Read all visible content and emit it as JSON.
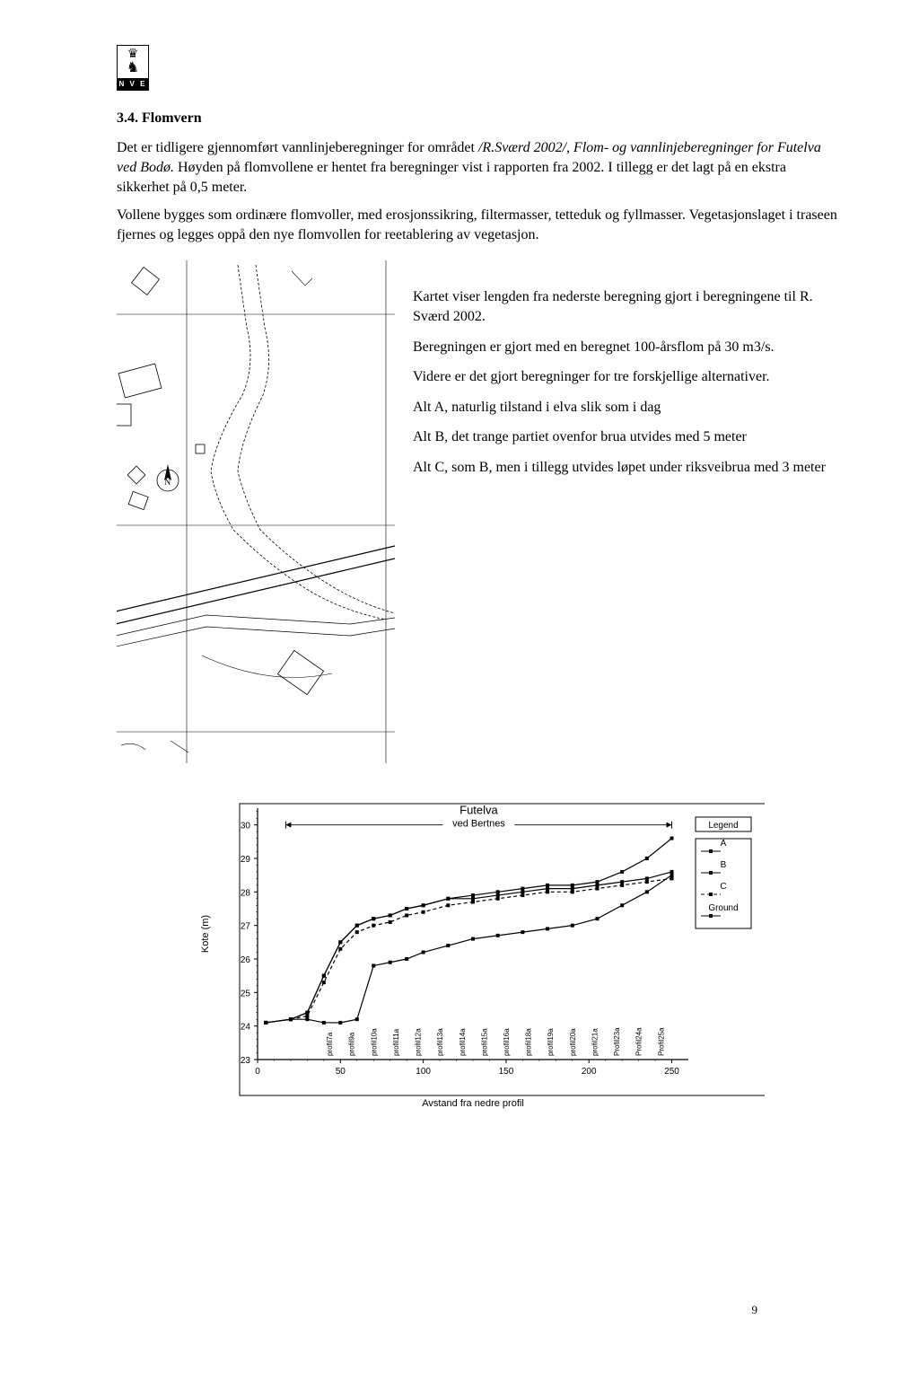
{
  "logo": {
    "label": "N V E",
    "crown_glyph": "♛",
    "lion_glyph": "♘"
  },
  "section": {
    "number": "3.4.",
    "title": "Flomvern"
  },
  "paragraphs": {
    "p1_a": "Det er tidligere gjennomført vannlinjeberegninger for området ",
    "p1_italic": "/R.Sværd 2002/, Flom- og vannlinjeberegninger for Futelva ved Bodø.",
    "p1_b": " Høyden på flomvollene er hentet fra beregninger vist i rapporten fra 2002. I tillegg er det lagt på en ekstra sikkerhet på 0,5 meter.",
    "p2": "Vollene bygges som ordinære flomvoller, med erosjonssikring, filtermasser, tetteduk og fyllmasser. Vegetasjonslaget i traseen fjernes og legges oppå den nye flomvollen for reetablering av vegetasjon."
  },
  "map_text": {
    "t1": "Kartet viser lengden fra nederste beregning gjort i beregningene til R. Sværd 2002.",
    "t2": "Beregningen er gjort med en beregnet 100-årsflom på 30 m3/s.",
    "t3": "Videre er det gjort beregninger for tre forskjellige alternativer.",
    "t4": "Alt A, naturlig tilstand i elva slik som i dag",
    "t5": "Alt B, det trange partiet ovenfor brua utvides med 5 meter",
    "t6": "Alt C, som B, men i tillegg utvides løpet under riksveibrua med 3 meter"
  },
  "chart": {
    "type": "line",
    "title_line1": "Futelva",
    "title_line2": "ved Bertnes",
    "ylabel": "Kote (m)",
    "xlabel": "Avstand fra nedre profil",
    "xlim": [
      0,
      260
    ],
    "ylim": [
      23,
      30.5
    ],
    "xtick_step": 50,
    "xticks": [
      0,
      50,
      100,
      150,
      200,
      250
    ],
    "ytick_step": 1,
    "yticks": [
      23,
      24,
      25,
      26,
      27,
      28,
      29,
      30
    ],
    "background_color": "#ffffff",
    "axis_color": "#000000",
    "legend": {
      "title": "Legend",
      "items": [
        "A",
        "B",
        "C",
        "Ground"
      ],
      "color": "#000000"
    },
    "profile_labels": [
      "profil7a",
      "profil9a",
      "profil10a",
      "profil11a",
      "profil12a",
      "profil13a",
      "profil14a",
      "profil15a",
      "profil16a",
      "profil18a",
      "profil19a",
      "profil20a",
      "profil21a",
      "Profil23a",
      "Profil24a",
      "Profil25a"
    ],
    "series": {
      "A": {
        "x": [
          5,
          20,
          30,
          40,
          50,
          60,
          70,
          80,
          90,
          100,
          115,
          130,
          145,
          160,
          175,
          190,
          205,
          220,
          235,
          250
        ],
        "y": [
          24.1,
          24.2,
          24.4,
          25.5,
          26.5,
          27.0,
          27.2,
          27.3,
          27.5,
          27.6,
          27.8,
          27.9,
          28.0,
          28.1,
          28.2,
          28.2,
          28.3,
          28.6,
          29.0,
          29.6
        ],
        "marker": "square",
        "color": "#000000"
      },
      "B": {
        "x": [
          5,
          20,
          30,
          40,
          50,
          60,
          70,
          80,
          90,
          100,
          115,
          130,
          145,
          160,
          175,
          190,
          205,
          220,
          235,
          250
        ],
        "y": [
          24.1,
          24.2,
          24.4,
          25.5,
          26.5,
          27.0,
          27.2,
          27.3,
          27.5,
          27.6,
          27.8,
          27.8,
          27.9,
          28.0,
          28.1,
          28.1,
          28.2,
          28.3,
          28.4,
          28.6
        ],
        "marker": "square",
        "color": "#000000"
      },
      "C": {
        "x": [
          5,
          20,
          30,
          40,
          50,
          60,
          70,
          80,
          90,
          100,
          115,
          130,
          145,
          160,
          175,
          190,
          205,
          220,
          235,
          250
        ],
        "y": [
          24.1,
          24.2,
          24.3,
          25.3,
          26.3,
          26.8,
          27.0,
          27.1,
          27.3,
          27.4,
          27.6,
          27.7,
          27.8,
          27.9,
          28.0,
          28.0,
          28.1,
          28.2,
          28.3,
          28.4
        ],
        "marker": "square",
        "color": "#000000"
      },
      "Ground": {
        "x": [
          5,
          20,
          30,
          40,
          50,
          60,
          70,
          80,
          90,
          100,
          115,
          130,
          145,
          160,
          175,
          190,
          205,
          220,
          235,
          250
        ],
        "y": [
          24.1,
          24.2,
          24.2,
          24.1,
          24.1,
          24.2,
          25.8,
          25.9,
          26.0,
          26.2,
          26.4,
          26.6,
          26.7,
          26.8,
          26.9,
          27.0,
          27.2,
          27.6,
          28.0,
          28.5
        ],
        "marker": "square",
        "color": "#000000"
      }
    },
    "top_arrow_range": [
      17,
      250
    ],
    "title_fontsize": 13,
    "label_fontsize": 11,
    "tick_fontsize": 10,
    "line_width": 1.2
  },
  "page_number": "9"
}
